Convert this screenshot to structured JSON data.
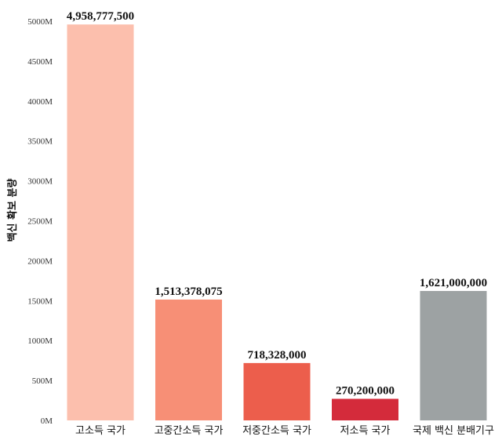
{
  "chart_data": {
    "type": "bar",
    "title": "",
    "xlabel": "",
    "ylabel": "백신 확보 분량",
    "categories": [
      "고소득 국가",
      "고중간소득 국가",
      "저중간소득 국가",
      "저소득 국가",
      "국제 백신 분배기구"
    ],
    "values": [
      4958777500,
      1513378075,
      718328000,
      270200000,
      1621000000
    ],
    "data_labels": [
      "4,958,777,500",
      "1,513,378,075",
      "718,328,000",
      "270,200,000",
      "1,621,000,000"
    ],
    "colors": [
      "#fcbfad",
      "#f78f76",
      "#ec5e4c",
      "#d42b3b",
      "#9da2a3"
    ],
    "ylim": [
      0,
      5000000000
    ],
    "yticks": [
      {
        "value": 0,
        "label": "0M"
      },
      {
        "value": 500000000,
        "label": "500M"
      },
      {
        "value": 1000000000,
        "label": "1000M"
      },
      {
        "value": 1500000000,
        "label": "1500M"
      },
      {
        "value": 2000000000,
        "label": "2000M"
      },
      {
        "value": 2500000000,
        "label": "2500M"
      },
      {
        "value": 3000000000,
        "label": "3000M"
      },
      {
        "value": 3500000000,
        "label": "3500M"
      },
      {
        "value": 4000000000,
        "label": "4000M"
      },
      {
        "value": 4500000000,
        "label": "4500M"
      },
      {
        "value": 5000000000,
        "label": "5000M"
      }
    ],
    "grid": false,
    "legend": "none"
  }
}
